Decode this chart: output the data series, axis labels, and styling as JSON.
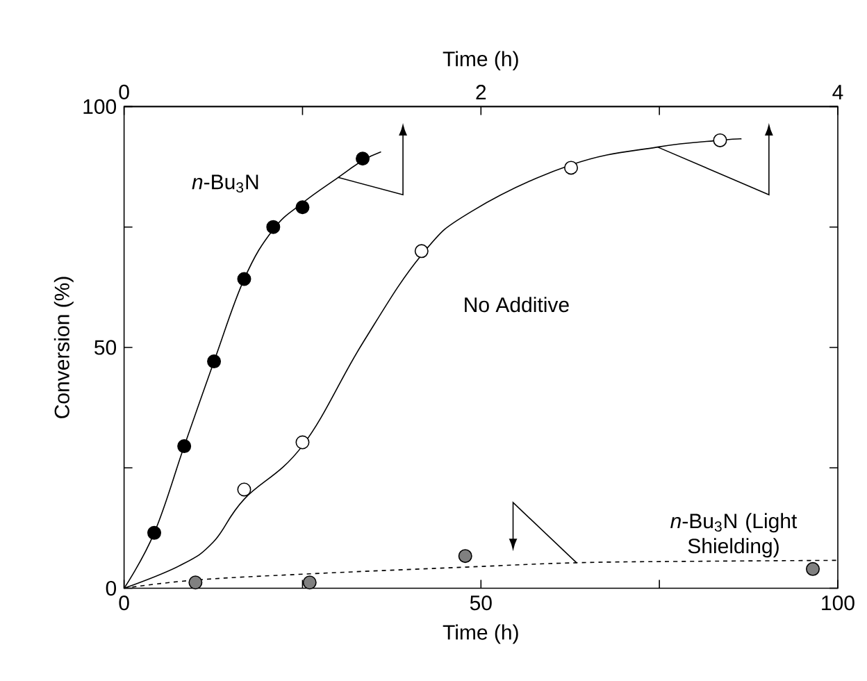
{
  "chart_data": {
    "type": "scatter",
    "xlabel": "Time (h)",
    "x2label": "Time (h)",
    "ylabel": "Conversion (%)",
    "xlim": [
      0,
      100
    ],
    "xticks": [
      0,
      {
        "value": 25,
        "label": null
      },
      50,
      {
        "value": 75,
        "label": null
      },
      100
    ],
    "x2lim": [
      0,
      4
    ],
    "x2ticks": [
      0,
      {
        "value": 1,
        "label": null
      },
      2,
      {
        "value": 3,
        "label": null
      },
      4
    ],
    "ylim": [
      0,
      100
    ],
    "yticks": [
      0,
      {
        "value": 25,
        "label": null
      },
      50,
      {
        "value": 75,
        "label": null
      },
      100
    ],
    "series": [
      {
        "name": "*n*-Bu$_{3}$N",
        "axis": "x2",
        "color": "#000000",
        "marker": "circle",
        "x": [
          0.169,
          0.337,
          0.504,
          0.673,
          0.836,
          1.0,
          1.337
        ],
        "values": [
          11.5,
          29.5,
          47.1,
          64.2,
          75,
          79.1,
          89.2
        ]
      },
      {
        "type": "line",
        "axis": "x2",
        "color": "#000000",
        "marker": "none",
        "line_style": "solid",
        "x": [
          0,
          0.169,
          0.337,
          0.504,
          0.673,
          0.836,
          1.0,
          1.2,
          1.337,
          1.44
        ],
        "values": [
          0,
          11.5,
          29.5,
          47.1,
          64.2,
          74.5,
          80,
          85.3,
          88.8,
          90.6
        ]
      },
      {
        "name": "No Additive",
        "axis": "x2",
        "color": "#ffffff",
        "marker": "circle",
        "x": [
          0.673,
          1.0,
          1.667,
          2.505,
          3.34
        ],
        "values": [
          20.5,
          30.3,
          70,
          87.3,
          93
        ]
      },
      {
        "type": "line",
        "axis": "x2",
        "color": "#000000",
        "marker": "none",
        "line_style": "solid",
        "x": [
          0,
          0.317,
          0.5,
          0.673,
          1.0,
          1.337,
          1.667,
          1.95,
          2.505,
          2.99,
          3.34,
          3.46
        ],
        "values": [
          0,
          4.8,
          9.6,
          18.5,
          29.6,
          50.9,
          69.2,
          78.3,
          87.9,
          91.6,
          93,
          93.3
        ]
      },
      {
        "name": "*n*-Bu$_{3}$N (Light Shielding)",
        "color": "#808080",
        "marker": "circle",
        "x": [
          10.0,
          26.0,
          47.8,
          96.5
        ],
        "values": [
          1.2,
          1.2,
          6.7,
          4.0
        ]
      },
      {
        "type": "line",
        "color": "#000000",
        "marker": "none",
        "line_style": "dashed",
        "x": [
          0,
          10,
          26,
          48,
          63.4,
          80,
          100
        ],
        "values": [
          0,
          1.7,
          3,
          4.4,
          5.3,
          5.6,
          5.8
        ]
      }
    ]
  }
}
